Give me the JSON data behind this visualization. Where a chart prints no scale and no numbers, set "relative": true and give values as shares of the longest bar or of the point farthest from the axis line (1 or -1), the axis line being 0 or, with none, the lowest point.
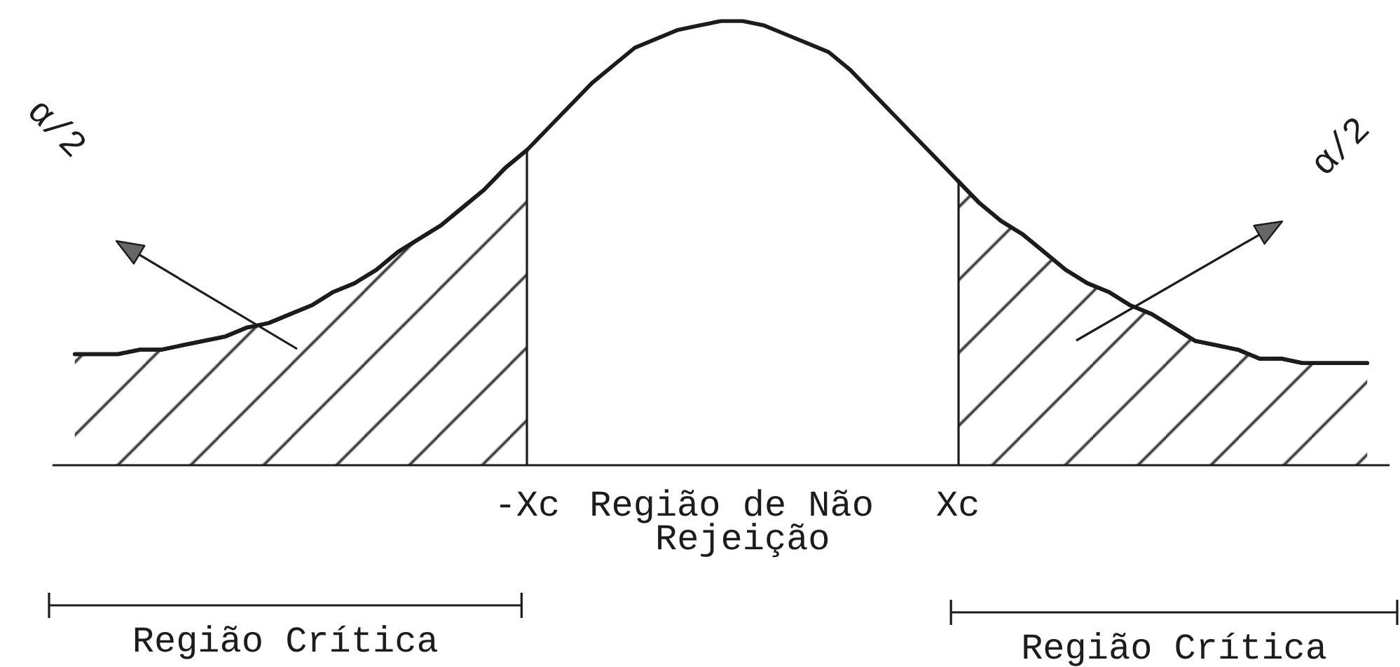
{
  "chart_data": {
    "type": "line",
    "categories": [
      null,
      null,
      null,
      null,
      null,
      null,
      null,
      null,
      null,
      null,
      null,
      null,
      null,
      null,
      null,
      null,
      null,
      null,
      null,
      null,
      null,
      null,
      "-Xc",
      null,
      null,
      null,
      null,
      null,
      null,
      null,
      null,
      null,
      null,
      null,
      null,
      null,
      null,
      null,
      null,
      null,
      null,
      null,
      "Xc",
      null,
      null,
      null,
      null,
      null,
      null,
      null,
      null,
      null,
      null,
      null,
      null,
      null,
      null,
      null,
      null,
      null,
      null,
      null,
      null
    ],
    "series": [
      {
        "type": "area",
        "color": "#1c1c1c",
        "values": [
          null,
          0.25,
          0.25,
          0.25,
          0.26,
          0.26,
          0.27,
          0.28,
          0.29,
          0.31,
          0.32,
          0.34,
          0.36,
          0.39,
          0.41,
          0.44,
          0.48,
          0.51,
          0.54,
          0.58,
          0.62,
          0.67,
          0.71,
          null,
          null,
          null,
          null,
          null,
          null,
          null,
          null,
          null,
          null,
          null,
          null,
          null,
          null,
          null,
          null,
          null,
          null,
          null,
          0.64,
          0.59,
          0.55,
          0.52,
          0.48,
          0.44,
          0.41,
          0.39,
          0.36,
          0.34,
          0.31,
          0.28,
          0.27,
          0.26,
          0.24,
          0.24,
          0.23,
          0.23,
          0.23,
          0.23,
          null
        ]
      },
      {
        "type": "line",
        "color": "#1c1c1c",
        "values": [
          null,
          0.25,
          0.25,
          0.25,
          0.26,
          0.26,
          0.27,
          0.28,
          0.29,
          0.31,
          0.32,
          0.34,
          0.36,
          0.39,
          0.41,
          0.44,
          0.48,
          0.51,
          0.54,
          0.58,
          0.62,
          0.67,
          0.71,
          0.76,
          0.81,
          0.86,
          0.9,
          0.94,
          0.96,
          0.98,
          0.99,
          1,
          1,
          0.99,
          0.97,
          0.95,
          0.93,
          0.89,
          0.84,
          0.79,
          0.74,
          0.69,
          0.64,
          0.59,
          0.55,
          0.52,
          0.48,
          0.44,
          0.41,
          0.39,
          0.36,
          0.34,
          0.31,
          0.28,
          0.27,
          0.26,
          0.24,
          0.24,
          0.23,
          0.23,
          0.23,
          0.23,
          null
        ]
      }
    ],
    "relative": true,
    "marker": "none",
    "tick_labels": "x",
    "annotations": [
      "α/2",
      "α/2",
      "Região de Não Rejeição",
      "Região Crítica",
      "Região Crítica"
    ]
  }
}
